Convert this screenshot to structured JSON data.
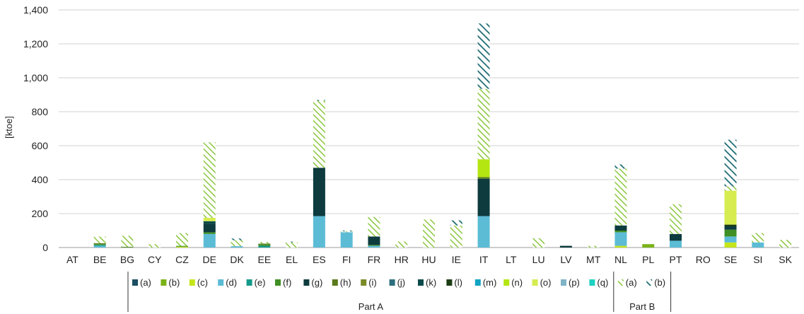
{
  "chart_data": {
    "type": "bar",
    "stacked": true,
    "ylabel": "[ktoe]",
    "ylim": [
      0,
      1400
    ],
    "yticks": [
      "0",
      "200",
      "400",
      "600",
      "800",
      "1,000",
      "1,200",
      "1,400"
    ],
    "ytick_values": [
      0,
      200,
      400,
      600,
      800,
      1000,
      1200,
      1400
    ],
    "grid": true,
    "legend_position": "bottom",
    "categories": [
      "AT",
      "BE",
      "BG",
      "CY",
      "CZ",
      "DE",
      "DK",
      "EE",
      "EL",
      "ES",
      "FI",
      "FR",
      "HR",
      "HU",
      "IE",
      "IT",
      "LT",
      "LU",
      "LV",
      "MT",
      "NL",
      "PL",
      "PT",
      "RO",
      "SE",
      "SI",
      "SK"
    ],
    "legend_groups": [
      {
        "label": "Part A",
        "series_range": [
          0,
          17
        ]
      },
      {
        "label": "Part B",
        "series_range": [
          17,
          19
        ]
      }
    ],
    "series": [
      {
        "name": "(a)",
        "group": "Part A",
        "color": "#1b4f63",
        "pattern": "solid",
        "values": [
          0,
          0,
          0,
          0,
          0,
          0,
          0,
          0,
          0,
          0,
          0,
          0,
          0,
          0,
          0,
          0,
          0,
          0,
          0,
          0,
          0,
          0,
          0,
          0,
          0,
          0,
          0
        ]
      },
      {
        "name": "(b)",
        "group": "Part A",
        "color": "#7ab317",
        "pattern": "solid",
        "values": [
          0,
          0,
          0,
          0,
          0,
          0,
          0,
          0,
          0,
          0,
          0,
          0,
          0,
          0,
          0,
          0,
          0,
          0,
          0,
          0,
          0,
          20,
          0,
          0,
          0,
          0,
          0
        ]
      },
      {
        "name": "(c)",
        "group": "Part A",
        "color": "#c5e51a",
        "pattern": "solid",
        "values": [
          0,
          0,
          0,
          0,
          5,
          0,
          0,
          0,
          0,
          0,
          0,
          0,
          0,
          0,
          0,
          0,
          0,
          0,
          0,
          0,
          10,
          0,
          0,
          0,
          30,
          0,
          0
        ]
      },
      {
        "name": "(d)",
        "group": "Part A",
        "color": "#5cbcd6",
        "pattern": "solid",
        "values": [
          0,
          10,
          0,
          0,
          0,
          80,
          8,
          0,
          0,
          185,
          90,
          10,
          0,
          0,
          0,
          185,
          0,
          0,
          0,
          0,
          80,
          0,
          40,
          0,
          35,
          30,
          0
        ]
      },
      {
        "name": "(e)",
        "group": "Part A",
        "color": "#14998a",
        "pattern": "solid",
        "values": [
          0,
          5,
          0,
          0,
          0,
          0,
          0,
          10,
          0,
          0,
          0,
          0,
          0,
          0,
          0,
          0,
          0,
          0,
          0,
          0,
          0,
          0,
          0,
          0,
          0,
          0,
          0
        ]
      },
      {
        "name": "(f)",
        "group": "Part A",
        "color": "#3f8f24",
        "pattern": "solid",
        "values": [
          0,
          5,
          2,
          0,
          5,
          10,
          0,
          8,
          0,
          0,
          0,
          5,
          0,
          0,
          0,
          0,
          0,
          0,
          0,
          0,
          10,
          0,
          0,
          0,
          40,
          0,
          0
        ]
      },
      {
        "name": "(g)",
        "group": "Part A",
        "color": "#0d3b3e",
        "pattern": "solid",
        "values": [
          0,
          0,
          0,
          0,
          0,
          50,
          0,
          0,
          0,
          285,
          0,
          50,
          0,
          0,
          0,
          220,
          0,
          0,
          10,
          0,
          30,
          0,
          40,
          0,
          20,
          0,
          0
        ]
      },
      {
        "name": "(h)",
        "group": "Part A",
        "color": "#5a7a1c",
        "pattern": "solid",
        "values": [
          0,
          5,
          2,
          0,
          0,
          0,
          0,
          5,
          0,
          0,
          0,
          0,
          0,
          0,
          0,
          10,
          0,
          0,
          0,
          0,
          0,
          0,
          0,
          0,
          0,
          0,
          0
        ]
      },
      {
        "name": "(i)",
        "group": "Part A",
        "color": "#7a8a26",
        "pattern": "solid",
        "values": [
          0,
          0,
          0,
          0,
          0,
          0,
          0,
          0,
          0,
          0,
          0,
          0,
          0,
          0,
          0,
          0,
          0,
          0,
          0,
          0,
          0,
          0,
          0,
          0,
          0,
          0,
          0
        ]
      },
      {
        "name": "(j)",
        "group": "Part A",
        "color": "#2d6e7e",
        "pattern": "solid",
        "values": [
          0,
          0,
          0,
          0,
          0,
          0,
          0,
          0,
          0,
          0,
          0,
          0,
          0,
          0,
          0,
          0,
          0,
          0,
          0,
          0,
          0,
          0,
          0,
          0,
          0,
          0,
          0
        ]
      },
      {
        "name": "(k)",
        "group": "Part A",
        "color": "#0a4a4a",
        "pattern": "solid",
        "values": [
          0,
          0,
          0,
          0,
          0,
          15,
          0,
          0,
          0,
          0,
          0,
          0,
          0,
          0,
          0,
          0,
          0,
          0,
          0,
          0,
          0,
          0,
          0,
          0,
          0,
          0,
          0
        ]
      },
      {
        "name": "(l)",
        "group": "Part A",
        "color": "#1d3d14",
        "pattern": "solid",
        "values": [
          0,
          0,
          0,
          0,
          0,
          0,
          0,
          0,
          0,
          0,
          0,
          0,
          0,
          0,
          0,
          0,
          0,
          0,
          0,
          0,
          0,
          0,
          0,
          0,
          10,
          0,
          0
        ]
      },
      {
        "name": "(m)",
        "group": "Part A",
        "color": "#12a3c2",
        "pattern": "solid",
        "values": [
          0,
          0,
          0,
          0,
          0,
          0,
          0,
          0,
          0,
          0,
          0,
          0,
          0,
          0,
          0,
          0,
          0,
          0,
          0,
          0,
          0,
          0,
          0,
          0,
          0,
          0,
          0
        ]
      },
      {
        "name": "(n)",
        "group": "Part A",
        "color": "#b4e612",
        "pattern": "solid",
        "values": [
          0,
          0,
          0,
          0,
          0,
          0,
          0,
          0,
          0,
          0,
          0,
          0,
          0,
          0,
          0,
          105,
          0,
          0,
          0,
          0,
          0,
          0,
          0,
          0,
          0,
          0,
          0
        ]
      },
      {
        "name": "(o)",
        "group": "Part A",
        "color": "#d6ec50",
        "pattern": "solid",
        "values": [
          0,
          0,
          0,
          0,
          0,
          20,
          0,
          0,
          0,
          0,
          0,
          0,
          0,
          0,
          0,
          0,
          0,
          0,
          0,
          0,
          0,
          0,
          0,
          0,
          200,
          0,
          0
        ]
      },
      {
        "name": "(p)",
        "group": "Part A",
        "color": "#7fb3c6",
        "pattern": "solid",
        "values": [
          0,
          0,
          0,
          0,
          0,
          0,
          0,
          0,
          0,
          0,
          0,
          0,
          0,
          0,
          0,
          0,
          0,
          0,
          0,
          0,
          0,
          0,
          0,
          0,
          0,
          0,
          0
        ]
      },
      {
        "name": "(q)",
        "group": "Part A",
        "color": "#1fd1c1",
        "pattern": "solid",
        "values": [
          0,
          0,
          0,
          0,
          0,
          0,
          0,
          0,
          0,
          0,
          0,
          0,
          0,
          0,
          0,
          0,
          0,
          0,
          0,
          0,
          0,
          0,
          0,
          0,
          0,
          0,
          0
        ]
      },
      {
        "name": "(a)",
        "group": "Part B",
        "color": "#8cc63f",
        "pattern": "hatch-green",
        "values": [
          0,
          40,
          65,
          20,
          75,
          445,
          35,
          10,
          30,
          395,
          5,
          115,
          35,
          165,
          130,
          415,
          0,
          55,
          0,
          10,
          335,
          0,
          175,
          0,
          25,
          55,
          45
        ]
      },
      {
        "name": "(b)",
        "group": "Part B",
        "color": "#1b6a73",
        "pattern": "hatch-teal",
        "values": [
          0,
          0,
          0,
          0,
          0,
          0,
          10,
          0,
          5,
          5,
          5,
          0,
          0,
          0,
          30,
          385,
          0,
          0,
          0,
          0,
          25,
          0,
          0,
          0,
          275,
          0,
          0
        ]
      }
    ]
  }
}
